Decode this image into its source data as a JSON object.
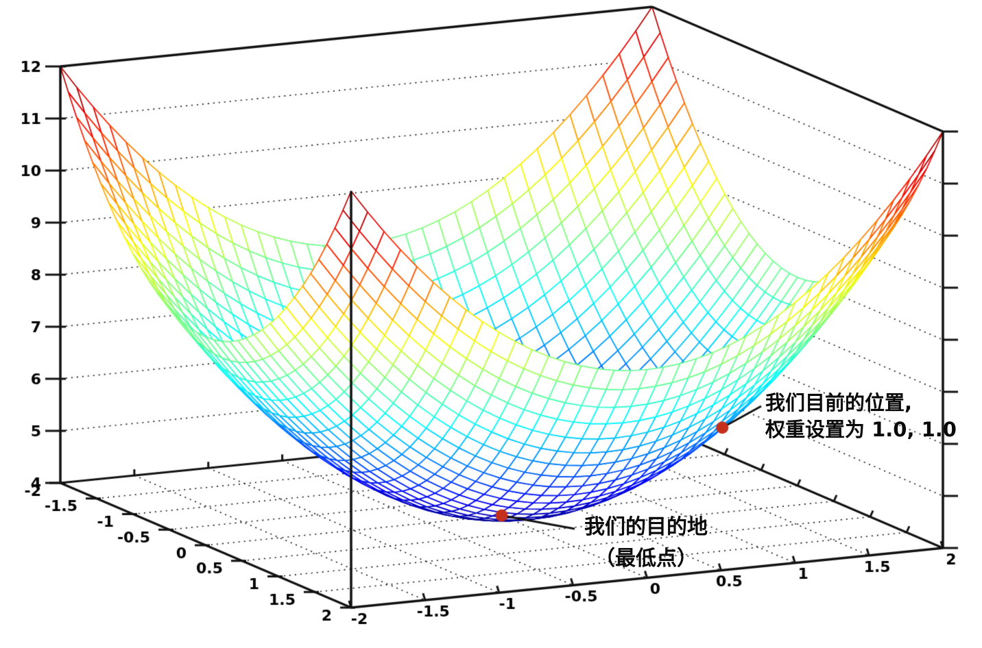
{
  "figure": {
    "background": "#ffffff",
    "edge_color": "#111111",
    "label_color": "#000000"
  },
  "chart_data": {
    "type": "surface",
    "description": "3D wireframe mesh of a paraboloid error surface; jet colormap (blue = low, red = high); dotted gridlines on back walls and floor",
    "surface": {
      "formula": "z = 4 + x^2 + y^2",
      "base": 4,
      "coeff_x2": 1,
      "coeff_y2": 1,
      "x_range": [
        -2,
        2
      ],
      "y_range": [
        -2,
        2
      ],
      "z_range": [
        4,
        12
      ],
      "mesh_cells": 36
    },
    "colormap": "jet",
    "axes": {
      "x_ticks": [
        -2,
        -1.5,
        -1,
        -0.5,
        0,
        0.5,
        1,
        1.5,
        2
      ],
      "x_tick_labels": [
        "-2",
        "-1.5",
        "-1",
        "-0.5",
        "0",
        "0.5",
        "1",
        "1.5",
        "2"
      ],
      "y_ticks": [
        -2,
        -1.5,
        -1,
        -0.5,
        0,
        0.5,
        1,
        1.5,
        2
      ],
      "y_tick_labels": [
        "-2",
        "-1.5",
        "-1",
        "-0.5",
        "0",
        "0.5",
        "1",
        "1.5",
        "2"
      ],
      "z_ticks": [
        4,
        5,
        6,
        7,
        8,
        9,
        10,
        11,
        12
      ],
      "z_tick_labels": [
        "4",
        "5",
        "6",
        "7",
        "8",
        "9",
        "10",
        "11",
        "12"
      ],
      "z_wall_gridlines": [
        5,
        6,
        7,
        8,
        9,
        10,
        11
      ],
      "floor_gridlines": [
        -1.5,
        -1,
        -0.5,
        0,
        0.5,
        1,
        1.5
      ],
      "grid_dotted": true
    },
    "markers": [
      {
        "x": 1.0,
        "y": 1.0,
        "z": 6.0,
        "color": "#c5301d",
        "annotation_id": "current-position"
      },
      {
        "x": 0.0,
        "y": 0.0,
        "z": 4.0,
        "color": "#c5301d",
        "annotation_id": "destination"
      }
    ],
    "annotations": [
      {
        "id": "current-position",
        "lines": [
          "我们目前的位置,",
          "权重设置为 1.0, 1.0"
        ],
        "point": {
          "x": 1.0,
          "y": 1.0,
          "z": 6.0
        }
      },
      {
        "id": "destination",
        "lines": [
          "我们的目的地",
          "（最低点）"
        ],
        "point": {
          "x": 0.0,
          "y": 0.0,
          "z": 4.0
        }
      }
    ]
  }
}
